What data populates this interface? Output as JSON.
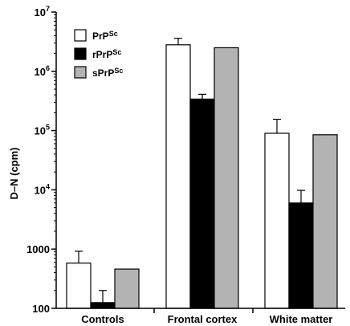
{
  "chart_data": {
    "type": "bar",
    "title": "",
    "xlabel": "",
    "ylabel": "D–N (cpm)",
    "yscale": "log",
    "ylim": [
      100,
      10000000
    ],
    "y_ticks": [
      {
        "value": 10000000,
        "base": "10",
        "exp": "7"
      },
      {
        "value": 1000000,
        "base": "10",
        "exp": "6"
      },
      {
        "value": 100000,
        "base": "10",
        "exp": "5"
      },
      {
        "value": 10000,
        "base": "10",
        "exp": "4"
      },
      {
        "value": 1000,
        "base": "1000",
        "exp": ""
      },
      {
        "value": 100,
        "base": "100",
        "exp": ""
      }
    ],
    "categories": [
      "Controls",
      "Frontal cortex",
      "White matter"
    ],
    "series": [
      {
        "name_main": "PrP",
        "name_sup": "Sc",
        "color": "#ffffff",
        "values": [
          580,
          2800000,
          90000
        ],
        "errors_upper": [
          920,
          3600000,
          155000
        ]
      },
      {
        "name_main": "rPrP",
        "name_sup": "Sc",
        "color": "#000000",
        "values": [
          125,
          340000,
          6000
        ],
        "errors_upper": [
          200,
          410000,
          9800
        ]
      },
      {
        "name_main": "sPrP",
        "name_sup": "Sc",
        "color": "#b3b3b3",
        "values": [
          460,
          2500000,
          85000
        ],
        "errors_upper": [
          null,
          null,
          null
        ]
      }
    ],
    "legend_position": "top-left",
    "grid": false
  }
}
